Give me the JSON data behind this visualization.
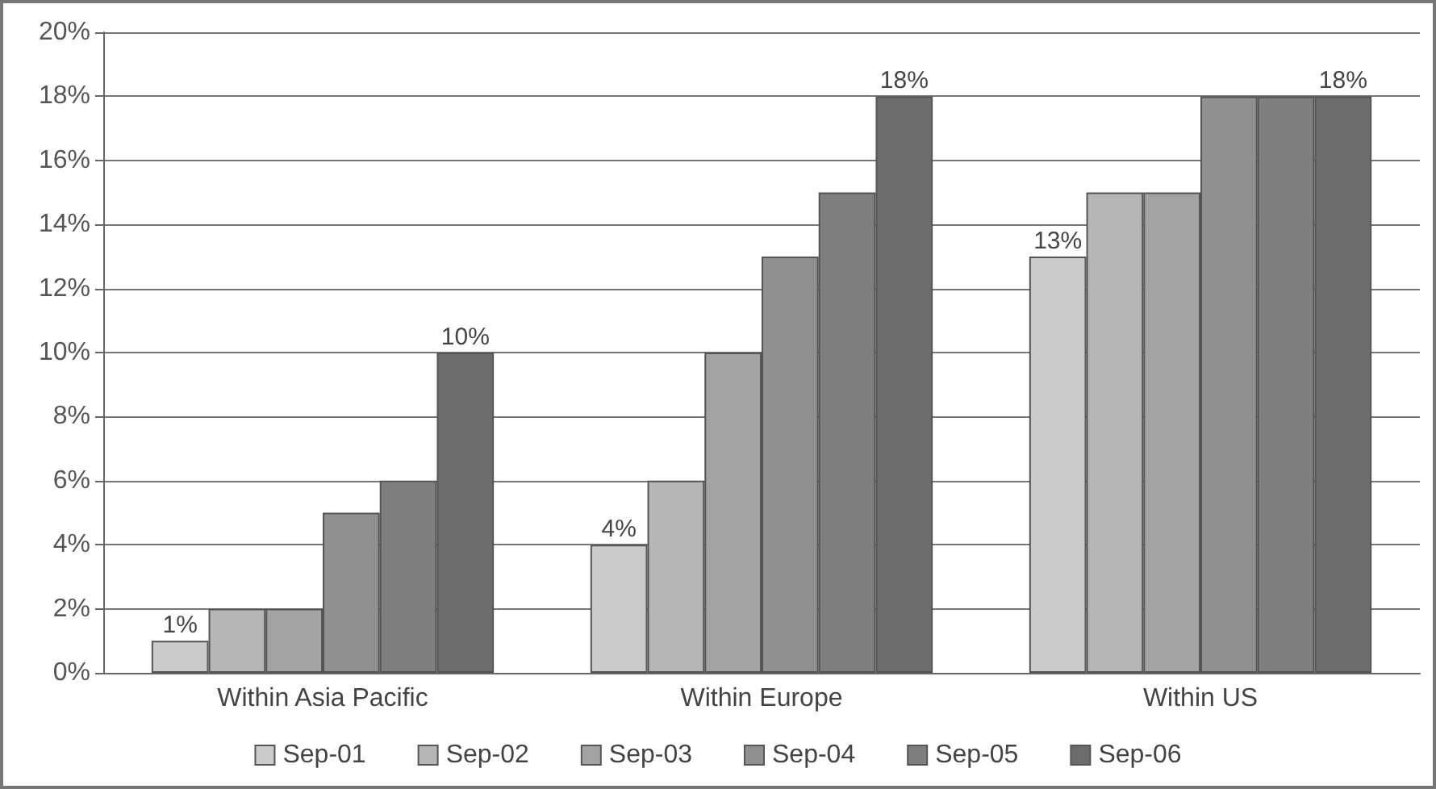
{
  "chart_data": {
    "type": "bar",
    "categories": [
      "Within Asia Pacific",
      "Within Europe",
      "Within US"
    ],
    "series": [
      {
        "name": "Sep-01",
        "color": "#cbcbcb",
        "values": [
          1,
          4,
          13
        ],
        "value_labels": [
          "1%",
          "4%",
          "13%"
        ]
      },
      {
        "name": "Sep-02",
        "color": "#b6b6b6",
        "values": [
          2,
          6,
          15
        ],
        "value_labels": [
          null,
          null,
          null
        ]
      },
      {
        "name": "Sep-03",
        "color": "#a3a3a3",
        "values": [
          2,
          10,
          15
        ],
        "value_labels": [
          null,
          null,
          null
        ]
      },
      {
        "name": "Sep-04",
        "color": "#909090",
        "values": [
          5,
          13,
          18
        ],
        "value_labels": [
          null,
          null,
          null
        ]
      },
      {
        "name": "Sep-05",
        "color": "#7f7f7f",
        "values": [
          6,
          15,
          18
        ],
        "value_labels": [
          null,
          null,
          null
        ]
      },
      {
        "name": "Sep-06",
        "color": "#6c6c6c",
        "values": [
          10,
          18,
          18
        ],
        "value_labels": [
          "10%",
          "18%",
          "18%"
        ]
      }
    ],
    "ylim": [
      0,
      20
    ],
    "yticks": [
      {
        "value": 0,
        "label": "0%"
      },
      {
        "value": 2,
        "label": "2%"
      },
      {
        "value": 4,
        "label": "4%"
      },
      {
        "value": 6,
        "label": "6%"
      },
      {
        "value": 8,
        "label": "8%"
      },
      {
        "value": 10,
        "label": "10%"
      },
      {
        "value": 12,
        "label": "12%"
      },
      {
        "value": 14,
        "label": "14%"
      },
      {
        "value": 16,
        "label": "16%"
      },
      {
        "value": 18,
        "label": "18%"
      },
      {
        "value": 20,
        "label": "20%"
      }
    ],
    "grid": "y",
    "legend": "bottom"
  }
}
